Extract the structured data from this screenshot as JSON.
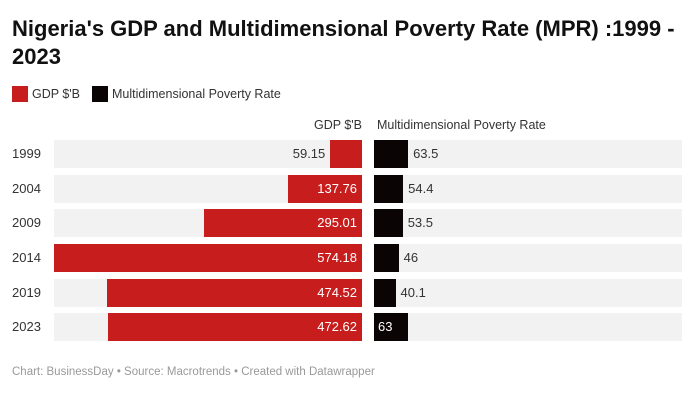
{
  "title": "Nigeria's GDP and Multidimensional Poverty Rate (MPR) :1999 - 2023",
  "colors": {
    "gdp": "#c71e1d",
    "mpr": "#0a0405",
    "row_bg": "#f2f2f2"
  },
  "footer": "Chart: BusinessDay • Source: Macrotrends • Created with Datawrapper",
  "chart_data": {
    "type": "bar",
    "orientation": "horizontal",
    "title": "Nigeria's GDP and Multidimensional Poverty Rate (MPR) :1999 - 2023",
    "legend_placement": "top-left",
    "categories": [
      "1999",
      "2004",
      "2009",
      "2014",
      "2019",
      "2023"
    ],
    "series": [
      {
        "name": "GDP $'B",
        "values": [
          59.15,
          137.76,
          295.01,
          574.18,
          474.52,
          472.62
        ],
        "labels": [
          "59.15",
          "137.76",
          "295.01",
          "574.18",
          "474.52",
          "472.62"
        ]
      },
      {
        "name": "Multidimensional Poverty Rate",
        "values": [
          63.5,
          54.4,
          53.5,
          46,
          40.1,
          63
        ],
        "labels": [
          "63.5",
          "54.4",
          "53.5",
          "46",
          "40.1",
          "63"
        ]
      }
    ],
    "xlim": [
      0,
      574.18
    ]
  }
}
